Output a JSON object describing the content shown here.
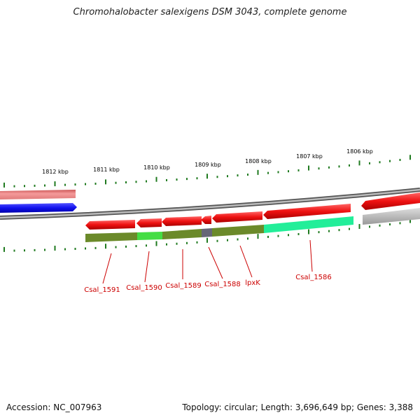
{
  "title": "Chromohalobacter salexigens DSM 3043, complete genome",
  "footer": {
    "accession": "Accession: NC_007963",
    "topology": "Topology: circular; Length: 3,696,649 bp; Genes: 3,388"
  },
  "scale_labels": [
    "1812 kbp",
    "1811 kbp",
    "1810 kbp",
    "1809 kbp",
    "1808 kbp",
    "1807 kbp",
    "1806 kbp"
  ],
  "gene_labels": [
    "Csal_1591",
    "Csal_1590",
    "Csal_1589",
    "Csal_1588",
    "lpxK",
    "Csal_1586"
  ],
  "colors": {
    "backbone": "#888888",
    "forward_gene_top": "#f08080",
    "forward_gene_blue": "#1a1aff",
    "reverse_gene": "#ee1111",
    "label": "#cc0000",
    "tick": "#1f7a1f",
    "operon_olive": "#6b8a2a",
    "operon_green": "#44dd44",
    "operon_gray": "#666677",
    "operon_cyan": "#22ee99",
    "gray_gene": "#bbbbbb"
  }
}
